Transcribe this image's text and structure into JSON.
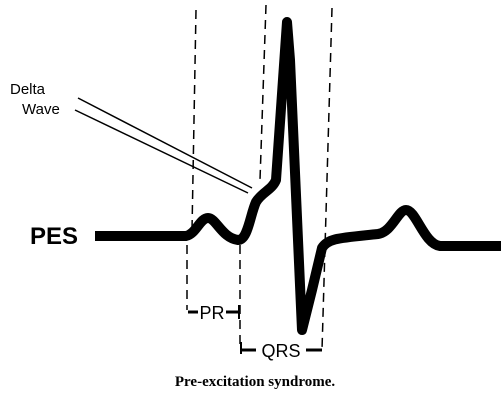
{
  "labels": {
    "delta": [
      "Delta",
      "Wave"
    ],
    "trace": "PES",
    "pr": "PR",
    "qrs": "QRS"
  },
  "caption": "Pre-excitation syndrome."
}
